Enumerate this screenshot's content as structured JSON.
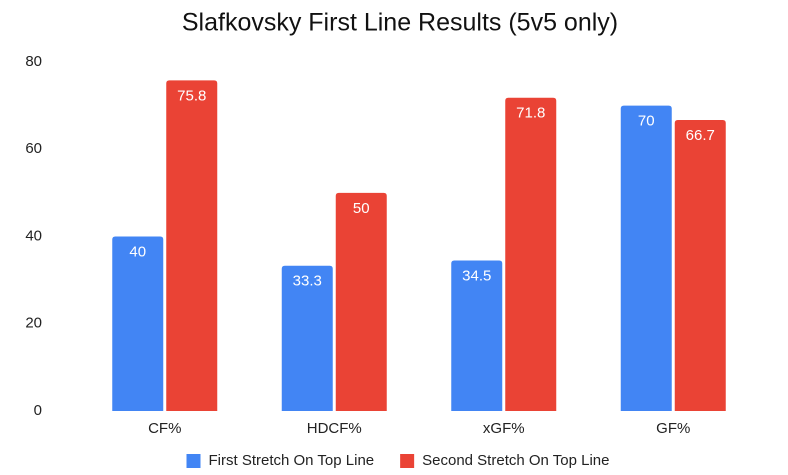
{
  "chart_data": {
    "type": "bar",
    "title": "Slafkovsky First Line Results (5v5 only)",
    "categories": [
      "CF%",
      "HDCF%",
      "xGF%",
      "GF%"
    ],
    "series": [
      {
        "name": "First Stretch On Top Line",
        "color": "#4285f4",
        "values": [
          40,
          33.3,
          34.5,
          70
        ]
      },
      {
        "name": "Second Stretch On Top Line",
        "color": "#ea4335",
        "values": [
          75.8,
          50,
          71.8,
          66.7
        ]
      }
    ],
    "ylim": [
      0,
      80
    ],
    "yticks": [
      0,
      20,
      40,
      60,
      80
    ],
    "grid": false,
    "legend": "bottom"
  }
}
